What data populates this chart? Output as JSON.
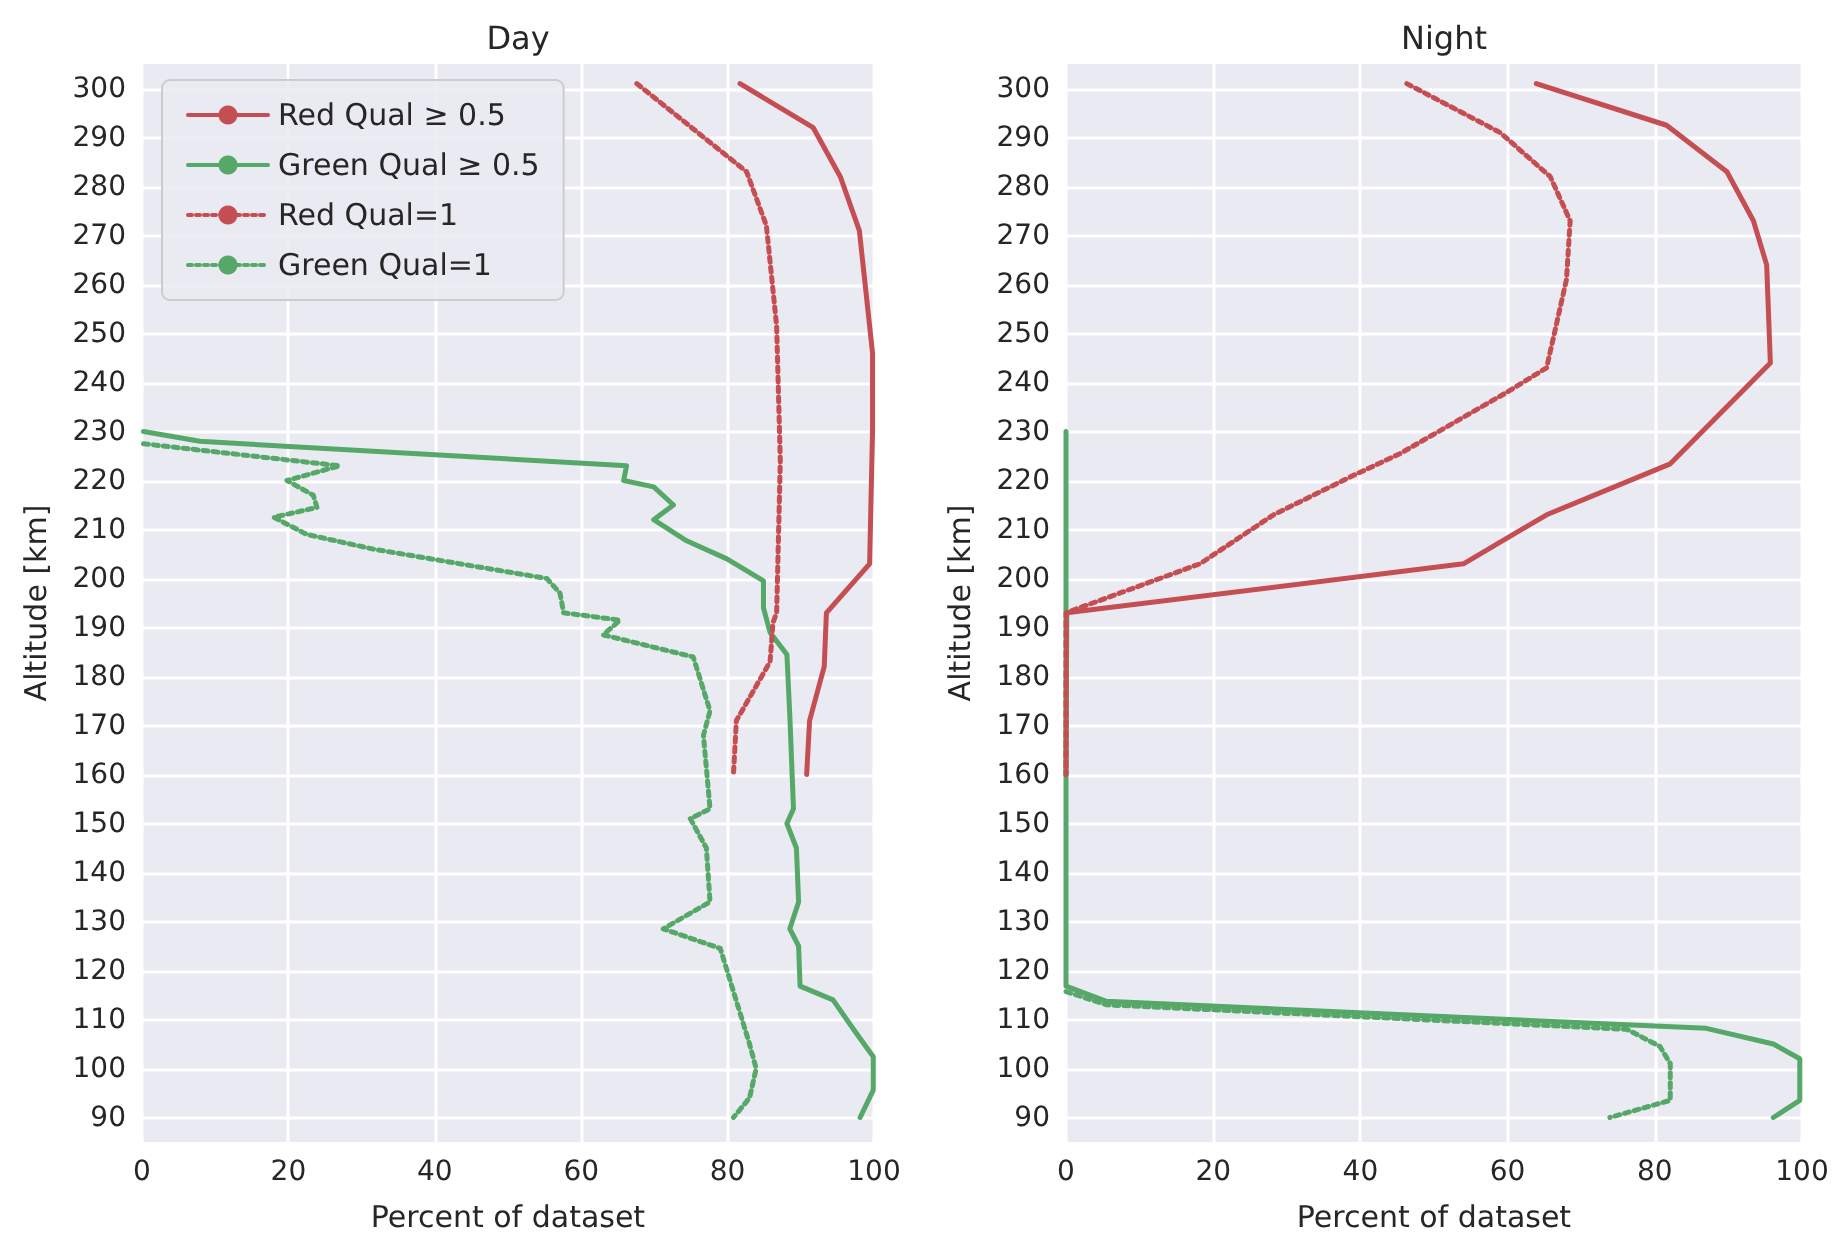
{
  "chart_data": [
    {
      "type": "line",
      "title": "Day",
      "xlabel": "Percent of dataset",
      "ylabel": "Altitude [km]",
      "xlim": [
        0,
        100
      ],
      "xticks": [
        0,
        20,
        40,
        60,
        80,
        100
      ],
      "ylim": [
        85,
        305
      ],
      "yticks": [
        90,
        100,
        110,
        120,
        130,
        140,
        150,
        160,
        170,
        180,
        190,
        200,
        210,
        220,
        230,
        240,
        250,
        260,
        270,
        280,
        290,
        300
      ],
      "grid": true,
      "legend": "top left",
      "marker": "none",
      "series": [
        {
          "name": "Red Qual ≥ 0.5",
          "color": "#c44e52",
          "line_style": "solid",
          "x": [
            81.7,
            91.7,
            95.4,
            98,
            99.8,
            99.8,
            99.4,
            93.5,
            93.2,
            91.2,
            90.8
          ],
          "values": [
            301,
            292,
            282,
            271,
            246,
            230,
            203,
            193,
            182,
            171,
            160
          ]
        },
        {
          "name": "Green Qual ≥ 0.5",
          "color": "#55a868",
          "line_style": "solid",
          "x": [
            0.2,
            7.9,
            66.2,
            65.8,
            69.9,
            72.6,
            69.9,
            74.4,
            79.9,
            84.9,
            84.9,
            85.8,
            88.1,
            88.5,
            89,
            88.1,
            89.4,
            89.7,
            88.5,
            89.7,
            89.9,
            94.4,
            97.2,
            99.9,
            99.9,
            98.1
          ],
          "values": [
            230,
            228,
            223,
            220,
            218.7,
            215,
            212,
            207.7,
            204,
            199.5,
            194,
            189,
            184.5,
            172,
            153,
            150,
            145,
            134,
            128.5,
            125,
            116.8,
            114,
            108,
            102.4,
            95.6,
            90
          ]
        },
        {
          "name": "Red Qual=1",
          "color": "#c44e52",
          "line_style": "dotted",
          "x": [
            67.6,
            82.6,
            85.3,
            86.7,
            87.2,
            86.7,
            86.2,
            85.8,
            81.2,
            80.8
          ],
          "values": [
            301,
            283,
            272,
            251.5,
            224,
            193,
            191,
            183,
            171,
            160
          ]
        },
        {
          "name": "Green Qual=1",
          "color": "#55a868",
          "line_style": "dotted",
          "x": [
            0.2,
            27,
            19.8,
            23.4,
            23.9,
            18,
            22.5,
            31.6,
            55.3,
            57.1,
            57.6,
            65.3,
            63,
            75.3,
            77.6,
            76.7,
            77.6,
            74.9,
            77.1,
            77.6,
            71.2,
            79,
            83,
            83.9,
            83,
            80.8
          ],
          "values": [
            227.5,
            223,
            220,
            217,
            214.5,
            212.5,
            209,
            206,
            200,
            197,
            193,
            191.5,
            188.5,
            184,
            173,
            168,
            153,
            151,
            145,
            134,
            128.5,
            124.5,
            105,
            100,
            94,
            90
          ]
        }
      ]
    },
    {
      "type": "line",
      "title": "Night",
      "xlabel": "Percent of dataset",
      "ylabel": "Altitude [km]",
      "xlim": [
        0,
        100
      ],
      "xticks": [
        0,
        20,
        40,
        60,
        80,
        100
      ],
      "ylim": [
        85,
        305
      ],
      "yticks": [
        90,
        100,
        110,
        120,
        130,
        140,
        150,
        160,
        170,
        180,
        190,
        200,
        210,
        220,
        230,
        240,
        250,
        260,
        270,
        280,
        290,
        300
      ],
      "grid": true,
      "marker": "none",
      "series": [
        {
          "color": "#c44e52",
          "line_style": "solid",
          "x": [
            63.9,
            81.6,
            89.8,
            93.4,
            95.2,
            95.7,
            82.1,
            65.3,
            54,
            0.1,
            0
          ],
          "values": [
            301,
            292.5,
            283,
            273,
            264,
            244,
            223.4,
            213,
            203,
            193,
            160
          ]
        },
        {
          "color": "#55a868",
          "line_style": "solid",
          "x": [
            0,
            0,
            5.5,
            87,
            96.1,
            99.7,
            99.7,
            96.1
          ],
          "values": [
            230,
            116.8,
            113.7,
            108.2,
            105,
            102,
            93.5,
            90
          ]
        },
        {
          "color": "#c44e52",
          "line_style": "dotted",
          "x": [
            46.3,
            59,
            65.8,
            68.5,
            68,
            65.3,
            59.9,
            45.4,
            39,
            28.2,
            18.2,
            0,
            0
          ],
          "values": [
            301,
            291,
            282,
            273,
            261,
            243,
            238,
            225.5,
            221,
            213,
            203,
            193,
            160
          ]
        },
        {
          "color": "#55a868",
          "line_style": "dotted",
          "x": [
            0,
            5.5,
            76.2,
            80.7,
            82.1,
            82.1,
            73.9
          ],
          "values": [
            115.7,
            113,
            108,
            104.5,
            101,
            93.5,
            90
          ]
        }
      ]
    }
  ]
}
